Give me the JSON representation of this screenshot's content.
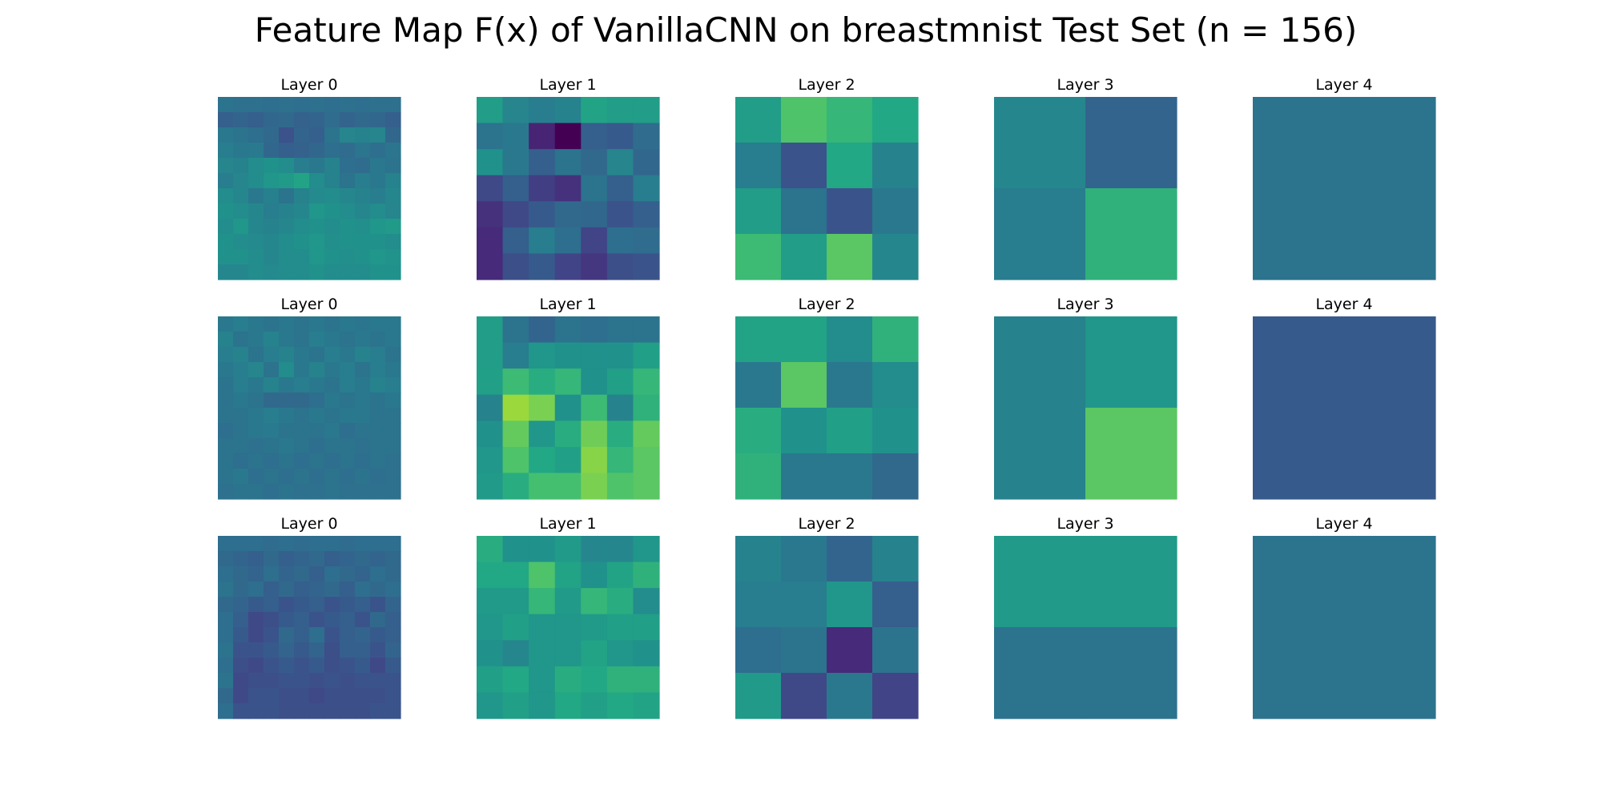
{
  "chart_data": {
    "type": "heatmap",
    "title": "Feature Map F(x) of VanillaCNN on breastmnist Test Set (n = 156)",
    "colormap": "viridis",
    "value_range": [
      0,
      1
    ],
    "grid": false,
    "axes_visible": false,
    "rows": [
      {
        "panels": [
          {
            "label": "Layer 0",
            "values": [
              [
                0.38,
                0.37,
                0.37,
                0.36,
                0.37,
                0.36,
                0.37,
                0.36,
                0.37,
                0.36,
                0.37,
                0.37
              ],
              [
                0.3,
                0.32,
                0.3,
                0.33,
                0.34,
                0.31,
                0.32,
                0.35,
                0.32,
                0.34,
                0.33,
                0.3
              ],
              [
                0.4,
                0.38,
                0.36,
                0.34,
                0.25,
                0.32,
                0.3,
                0.38,
                0.45,
                0.44,
                0.45,
                0.33
              ],
              [
                0.42,
                0.4,
                0.41,
                0.33,
                0.3,
                0.31,
                0.33,
                0.36,
                0.35,
                0.39,
                0.36,
                0.39
              ],
              [
                0.45,
                0.44,
                0.48,
                0.5,
                0.48,
                0.42,
                0.4,
                0.44,
                0.36,
                0.35,
                0.4,
                0.38
              ],
              [
                0.42,
                0.45,
                0.48,
                0.52,
                0.54,
                0.58,
                0.48,
                0.44,
                0.38,
                0.42,
                0.4,
                0.44
              ],
              [
                0.48,
                0.46,
                0.4,
                0.43,
                0.38,
                0.44,
                0.47,
                0.48,
                0.46,
                0.44,
                0.42,
                0.46
              ],
              [
                0.5,
                0.48,
                0.46,
                0.42,
                0.44,
                0.46,
                0.52,
                0.5,
                0.48,
                0.46,
                0.48,
                0.45
              ],
              [
                0.48,
                0.52,
                0.46,
                0.44,
                0.46,
                0.48,
                0.5,
                0.48,
                0.5,
                0.49,
                0.52,
                0.54
              ],
              [
                0.5,
                0.48,
                0.47,
                0.46,
                0.48,
                0.5,
                0.52,
                0.49,
                0.5,
                0.5,
                0.5,
                0.48
              ],
              [
                0.5,
                0.5,
                0.48,
                0.46,
                0.48,
                0.48,
                0.52,
                0.5,
                0.49,
                0.5,
                0.52,
                0.51
              ],
              [
                0.46,
                0.46,
                0.48,
                0.47,
                0.48,
                0.48,
                0.5,
                0.48,
                0.48,
                0.48,
                0.5,
                0.5
              ]
            ]
          },
          {
            "label": "Layer 1",
            "values": [
              [
                0.55,
                0.45,
                0.42,
                0.44,
                0.58,
                0.55,
                0.55
              ],
              [
                0.38,
                0.4,
                0.1,
                0.0,
                0.3,
                0.28,
                0.35
              ],
              [
                0.5,
                0.4,
                0.3,
                0.38,
                0.34,
                0.45,
                0.33
              ],
              [
                0.22,
                0.3,
                0.18,
                0.14,
                0.38,
                0.3,
                0.42
              ],
              [
                0.14,
                0.22,
                0.28,
                0.34,
                0.33,
                0.26,
                0.3
              ],
              [
                0.12,
                0.3,
                0.42,
                0.36,
                0.2,
                0.36,
                0.35
              ],
              [
                0.12,
                0.24,
                0.28,
                0.2,
                0.16,
                0.24,
                0.26
              ]
            ]
          },
          {
            "label": "Layer 2",
            "values": [
              [
                0.55,
                0.72,
                0.66,
                0.6
              ],
              [
                0.42,
                0.26,
                0.6,
                0.44
              ],
              [
                0.55,
                0.38,
                0.26,
                0.4
              ],
              [
                0.68,
                0.55,
                0.74,
                0.46
              ]
            ]
          },
          {
            "label": "Layer 3",
            "values": [
              [
                0.46,
                0.32
              ],
              [
                0.42,
                0.64
              ]
            ]
          },
          {
            "label": "Layer 4",
            "values": [
              [
                0.38
              ]
            ]
          }
        ]
      },
      {
        "panels": [
          {
            "label": "Layer 0",
            "values": [
              [
                0.4,
                0.42,
                0.4,
                0.38,
                0.4,
                0.38,
                0.4,
                0.38,
                0.4,
                0.39,
                0.4,
                0.4
              ],
              [
                0.44,
                0.38,
                0.4,
                0.44,
                0.4,
                0.38,
                0.42,
                0.4,
                0.38,
                0.4,
                0.38,
                0.4
              ],
              [
                0.42,
                0.44,
                0.38,
                0.42,
                0.44,
                0.4,
                0.38,
                0.42,
                0.4,
                0.44,
                0.42,
                0.38
              ],
              [
                0.4,
                0.42,
                0.45,
                0.38,
                0.48,
                0.4,
                0.44,
                0.4,
                0.42,
                0.38,
                0.42,
                0.4
              ],
              [
                0.38,
                0.42,
                0.4,
                0.44,
                0.4,
                0.42,
                0.4,
                0.38,
                0.42,
                0.4,
                0.44,
                0.42
              ],
              [
                0.38,
                0.4,
                0.38,
                0.34,
                0.34,
                0.34,
                0.36,
                0.4,
                0.38,
                0.4,
                0.38,
                0.4
              ],
              [
                0.38,
                0.38,
                0.4,
                0.42,
                0.4,
                0.38,
                0.4,
                0.38,
                0.4,
                0.4,
                0.38,
                0.38
              ],
              [
                0.36,
                0.38,
                0.4,
                0.41,
                0.38,
                0.38,
                0.38,
                0.4,
                0.36,
                0.38,
                0.38,
                0.38
              ],
              [
                0.38,
                0.38,
                0.37,
                0.38,
                0.4,
                0.38,
                0.36,
                0.38,
                0.38,
                0.37,
                0.38,
                0.38
              ],
              [
                0.38,
                0.36,
                0.38,
                0.36,
                0.38,
                0.36,
                0.38,
                0.36,
                0.38,
                0.36,
                0.38,
                0.37
              ],
              [
                0.38,
                0.4,
                0.36,
                0.38,
                0.36,
                0.38,
                0.36,
                0.38,
                0.36,
                0.38,
                0.36,
                0.37
              ],
              [
                0.37,
                0.38,
                0.38,
                0.36,
                0.38,
                0.37,
                0.37,
                0.38,
                0.37,
                0.37,
                0.37,
                0.37
              ]
            ]
          },
          {
            "label": "Layer 1",
            "values": [
              [
                0.55,
                0.38,
                0.32,
                0.38,
                0.36,
                0.38,
                0.38
              ],
              [
                0.55,
                0.42,
                0.52,
                0.5,
                0.5,
                0.5,
                0.56
              ],
              [
                0.56,
                0.68,
                0.62,
                0.66,
                0.5,
                0.56,
                0.66
              ],
              [
                0.44,
                0.85,
                0.8,
                0.5,
                0.68,
                0.44,
                0.64
              ],
              [
                0.5,
                0.76,
                0.52,
                0.62,
                0.78,
                0.62,
                0.76
              ],
              [
                0.52,
                0.72,
                0.6,
                0.56,
                0.82,
                0.66,
                0.74
              ],
              [
                0.54,
                0.62,
                0.7,
                0.7,
                0.8,
                0.72,
                0.74
              ]
            ]
          },
          {
            "label": "Layer 2",
            "values": [
              [
                0.58,
                0.58,
                0.48,
                0.64
              ],
              [
                0.4,
                0.74,
                0.4,
                0.48
              ],
              [
                0.62,
                0.5,
                0.56,
                0.5
              ],
              [
                0.64,
                0.4,
                0.4,
                0.34
              ]
            ]
          },
          {
            "label": "Layer 3",
            "values": [
              [
                0.44,
                0.52
              ],
              [
                0.44,
                0.74
              ]
            ]
          },
          {
            "label": "Layer 4",
            "values": [
              [
                0.28
              ]
            ]
          }
        ]
      },
      {
        "panels": [
          {
            "label": "Layer 0",
            "values": [
              [
                0.36,
                0.36,
                0.36,
                0.35,
                0.36,
                0.35,
                0.36,
                0.36,
                0.35,
                0.36,
                0.36,
                0.36
              ],
              [
                0.34,
                0.32,
                0.3,
                0.34,
                0.3,
                0.32,
                0.34,
                0.3,
                0.32,
                0.34,
                0.32,
                0.34
              ],
              [
                0.36,
                0.34,
                0.32,
                0.36,
                0.32,
                0.34,
                0.3,
                0.36,
                0.34,
                0.32,
                0.36,
                0.34
              ],
              [
                0.38,
                0.34,
                0.36,
                0.3,
                0.34,
                0.3,
                0.32,
                0.34,
                0.3,
                0.36,
                0.34,
                0.36
              ],
              [
                0.34,
                0.32,
                0.28,
                0.3,
                0.26,
                0.28,
                0.3,
                0.26,
                0.28,
                0.3,
                0.26,
                0.32
              ],
              [
                0.36,
                0.3,
                0.22,
                0.24,
                0.28,
                0.3,
                0.26,
                0.28,
                0.3,
                0.26,
                0.34,
                0.3
              ],
              [
                0.36,
                0.28,
                0.22,
                0.26,
                0.34,
                0.3,
                0.36,
                0.26,
                0.3,
                0.32,
                0.28,
                0.3
              ],
              [
                0.38,
                0.26,
                0.26,
                0.28,
                0.32,
                0.28,
                0.32,
                0.24,
                0.3,
                0.3,
                0.26,
                0.32
              ],
              [
                0.36,
                0.24,
                0.22,
                0.26,
                0.28,
                0.26,
                0.28,
                0.24,
                0.26,
                0.28,
                0.22,
                0.28
              ],
              [
                0.38,
                0.22,
                0.24,
                0.24,
                0.26,
                0.26,
                0.24,
                0.26,
                0.24,
                0.26,
                0.26,
                0.26
              ],
              [
                0.34,
                0.22,
                0.26,
                0.26,
                0.24,
                0.24,
                0.22,
                0.24,
                0.24,
                0.24,
                0.24,
                0.26
              ],
              [
                0.36,
                0.26,
                0.26,
                0.26,
                0.24,
                0.24,
                0.24,
                0.24,
                0.24,
                0.24,
                0.26,
                0.26
              ]
            ]
          },
          {
            "label": "Layer 1",
            "values": [
              [
                0.62,
                0.5,
                0.5,
                0.54,
                0.46,
                0.46,
                0.52
              ],
              [
                0.6,
                0.6,
                0.72,
                0.58,
                0.5,
                0.58,
                0.64
              ],
              [
                0.54,
                0.54,
                0.66,
                0.54,
                0.66,
                0.62,
                0.48
              ],
              [
                0.52,
                0.56,
                0.52,
                0.52,
                0.54,
                0.56,
                0.56
              ],
              [
                0.5,
                0.46,
                0.52,
                0.52,
                0.58,
                0.52,
                0.5
              ],
              [
                0.56,
                0.6,
                0.52,
                0.62,
                0.6,
                0.64,
                0.64
              ],
              [
                0.52,
                0.56,
                0.52,
                0.6,
                0.56,
                0.6,
                0.58
              ]
            ]
          },
          {
            "label": "Layer 2",
            "values": [
              [
                0.44,
                0.4,
                0.32,
                0.44
              ],
              [
                0.42,
                0.42,
                0.52,
                0.3
              ],
              [
                0.36,
                0.38,
                0.12,
                0.38
              ],
              [
                0.54,
                0.22,
                0.4,
                0.2
              ]
            ]
          },
          {
            "label": "Layer 3",
            "values": [
              [
                0.54,
                0.54
              ],
              [
                0.38,
                0.38
              ]
            ]
          },
          {
            "label": "Layer 4",
            "values": [
              [
                0.38
              ]
            ]
          }
        ]
      }
    ]
  }
}
